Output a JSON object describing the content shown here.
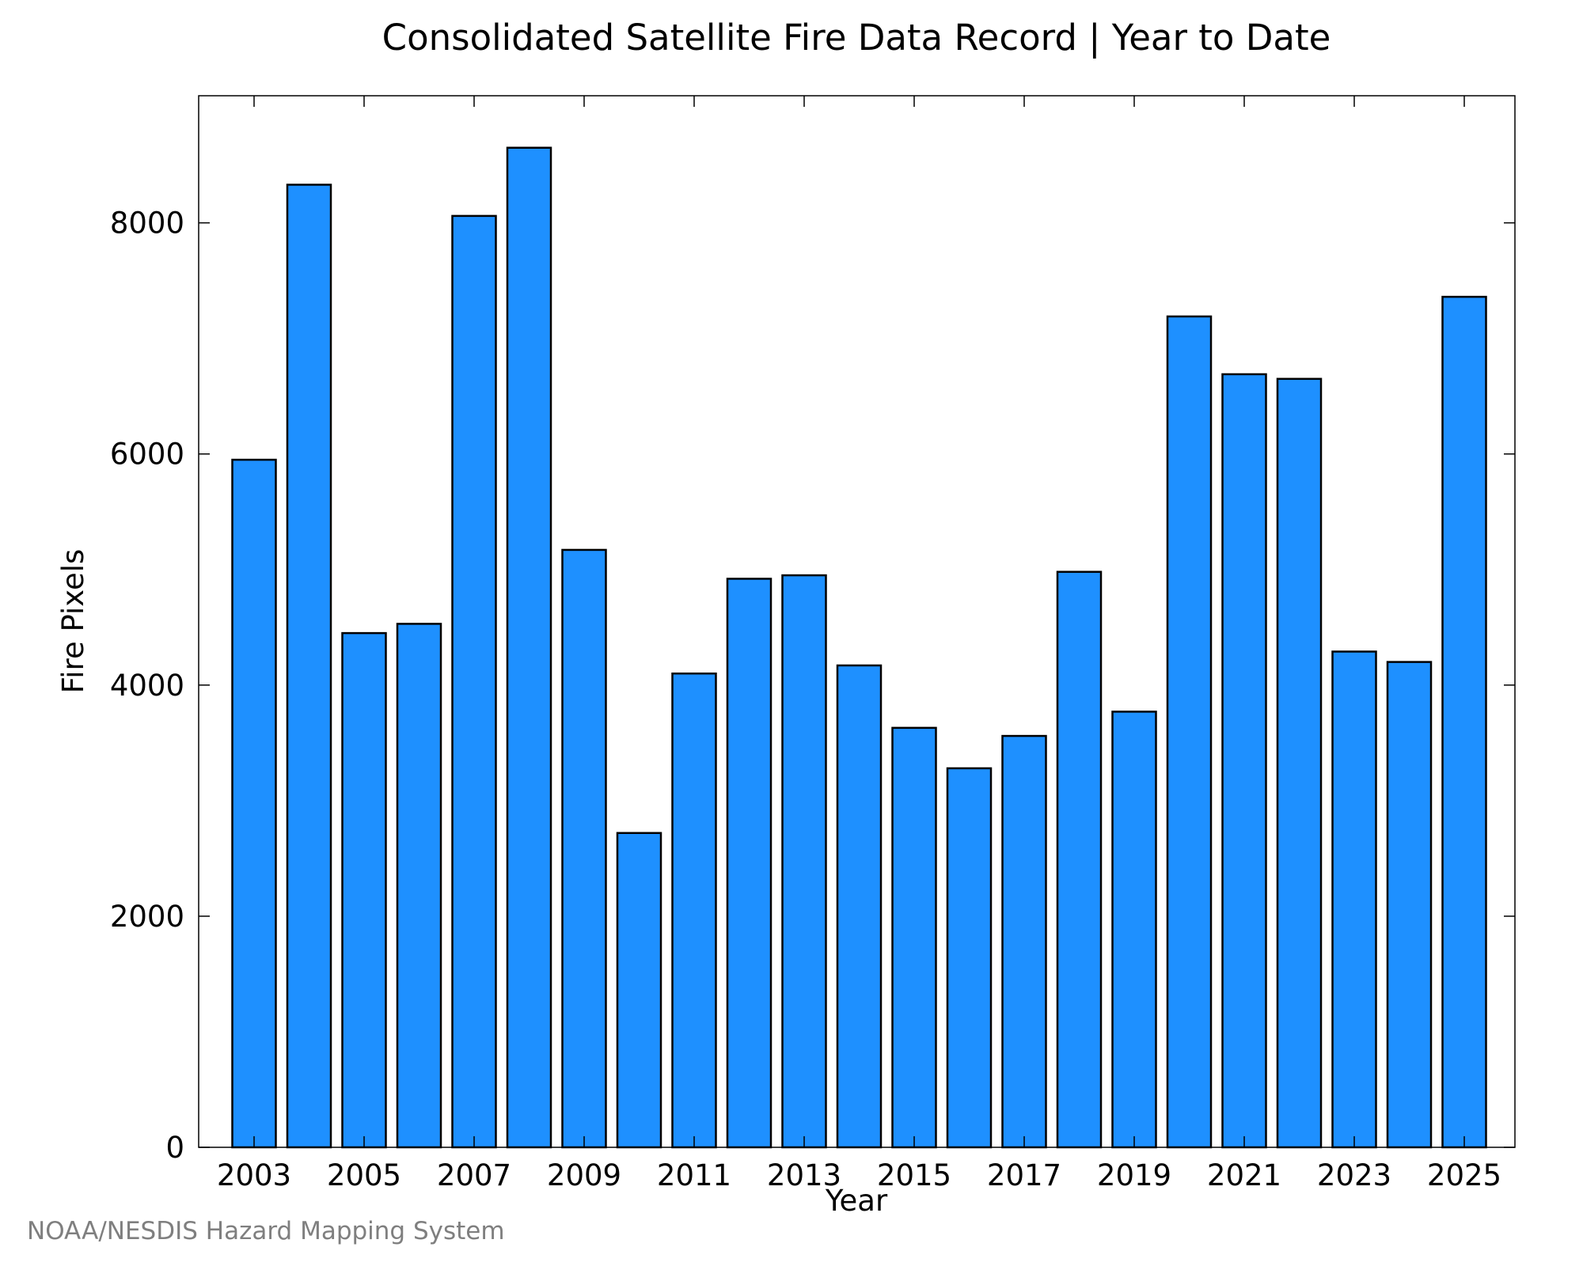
{
  "chart_data": {
    "type": "bar",
    "title": "Consolidated Satellite Fire Data Record | Year to Date",
    "xlabel": "Year",
    "ylabel": "Fire Pixels",
    "categories": [
      "2003",
      "2004",
      "2005",
      "2006",
      "2007",
      "2008",
      "2009",
      "2010",
      "2011",
      "2012",
      "2013",
      "2014",
      "2015",
      "2016",
      "2017",
      "2018",
      "2019",
      "2020",
      "2021",
      "2022",
      "2023",
      "2024",
      "2025"
    ],
    "values": [
      5950,
      8330,
      4450,
      4530,
      8060,
      8650,
      5170,
      2720,
      4100,
      4920,
      4950,
      4170,
      3630,
      3280,
      3560,
      4980,
      3770,
      7190,
      6690,
      6650,
      4290,
      4200,
      7360
    ],
    "x_tick_labels": [
      "2003",
      "2005",
      "2007",
      "2009",
      "2011",
      "2013",
      "2015",
      "2017",
      "2019",
      "2021",
      "2023",
      "2025"
    ],
    "y_tick_labels": [
      "0",
      "2000",
      "4000",
      "6000",
      "8000"
    ],
    "y_ticks": [
      0,
      2000,
      4000,
      6000,
      8000
    ],
    "ylim": [
      0,
      9100
    ],
    "grid": false,
    "legend": "none",
    "bar_color": "#1e90ff",
    "edge_color": "#000000"
  },
  "footer": {
    "credit": "NOAA/NESDIS Hazard Mapping System"
  }
}
